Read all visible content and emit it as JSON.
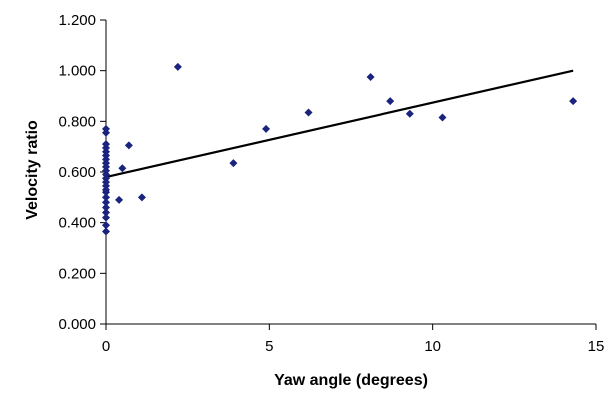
{
  "chart_data": {
    "type": "scatter",
    "xlabel": "Yaw angle (degrees)",
    "ylabel": "Velocity ratio",
    "xlim": [
      0,
      15
    ],
    "ylim": [
      0,
      1.2
    ],
    "x_ticks": [
      "0",
      "5",
      "10",
      "15"
    ],
    "y_ticks": [
      "0.000",
      "0.200",
      "0.400",
      "0.600",
      "0.800",
      "1.000",
      "1.200"
    ],
    "grid": false,
    "legend": "none",
    "marker": "diamond",
    "marker_color": "#1a237e",
    "points": [
      {
        "x": 0.0,
        "y": 0.365
      },
      {
        "x": 0.0,
        "y": 0.39
      },
      {
        "x": 0.0,
        "y": 0.42
      },
      {
        "x": 0.0,
        "y": 0.44
      },
      {
        "x": 0.0,
        "y": 0.46
      },
      {
        "x": 0.0,
        "y": 0.48
      },
      {
        "x": 0.0,
        "y": 0.5
      },
      {
        "x": 0.0,
        "y": 0.52
      },
      {
        "x": 0.0,
        "y": 0.53
      },
      {
        "x": 0.0,
        "y": 0.545
      },
      {
        "x": 0.0,
        "y": 0.56
      },
      {
        "x": 0.0,
        "y": 0.575
      },
      {
        "x": 0.0,
        "y": 0.59
      },
      {
        "x": 0.0,
        "y": 0.605
      },
      {
        "x": 0.0,
        "y": 0.62
      },
      {
        "x": 0.0,
        "y": 0.635
      },
      {
        "x": 0.0,
        "y": 0.65
      },
      {
        "x": 0.0,
        "y": 0.665
      },
      {
        "x": 0.0,
        "y": 0.68
      },
      {
        "x": 0.0,
        "y": 0.695
      },
      {
        "x": 0.0,
        "y": 0.71
      },
      {
        "x": 0.0,
        "y": 0.755
      },
      {
        "x": 0.0,
        "y": 0.77
      },
      {
        "x": 0.4,
        "y": 0.49
      },
      {
        "x": 0.5,
        "y": 0.615
      },
      {
        "x": 0.7,
        "y": 0.705
      },
      {
        "x": 1.1,
        "y": 0.5
      },
      {
        "x": 2.2,
        "y": 1.015
      },
      {
        "x": 3.9,
        "y": 0.635
      },
      {
        "x": 4.9,
        "y": 0.77
      },
      {
        "x": 6.2,
        "y": 0.835
      },
      {
        "x": 8.1,
        "y": 0.975
      },
      {
        "x": 8.7,
        "y": 0.88
      },
      {
        "x": 9.3,
        "y": 0.83
      },
      {
        "x": 10.3,
        "y": 0.815
      },
      {
        "x": 14.3,
        "y": 0.88
      }
    ],
    "trendline": {
      "type": "linear",
      "x": [
        0,
        14.3
      ],
      "y": [
        0.58,
        1.0
      ]
    }
  }
}
